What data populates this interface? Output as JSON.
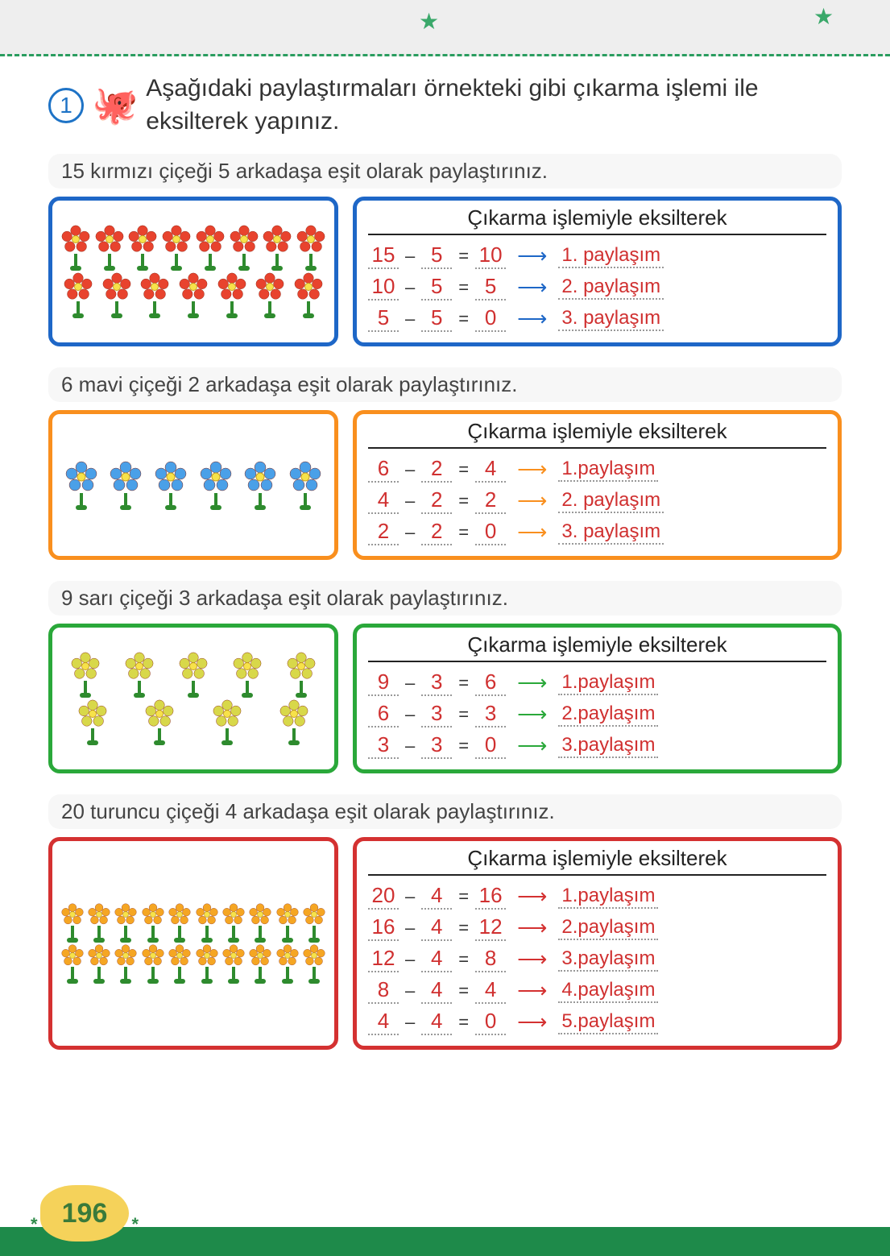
{
  "intro": {
    "number": "1",
    "text": "Aşağıdaki paylaştırmaları örnekteki gibi çıkarma işlemi ile eksilterek yapınız."
  },
  "calc_title": "Çıkarma işlemiyle eksilterek",
  "page_number": "196",
  "colors": {
    "blue": "#1e67c7",
    "orange": "#f98f1e",
    "green": "#2aa83a",
    "red": "#d43131"
  },
  "sections": [
    {
      "task": "15 kırmızı çiçeği 5 arkadaşa eşit olarak paylaştırınız.",
      "border_color": "#1e67c7",
      "arrow_color": "#1e67c7",
      "flower_color": "#e8432e",
      "rows": [
        8,
        7
      ],
      "petal_size": 18,
      "calc": [
        {
          "a": "15",
          "b": "5",
          "r": "10",
          "s": "1. paylaşım"
        },
        {
          "a": "10",
          "b": "5",
          "r": "5",
          "s": "2. paylaşım"
        },
        {
          "a": "5",
          "b": "5",
          "r": "0",
          "s": "3. paylaşım"
        }
      ]
    },
    {
      "task": "6 mavi çiçeği 2 arkadaşa eşit olarak paylaştırınız.",
      "border_color": "#f98f1e",
      "arrow_color": "#f98f1e",
      "flower_color": "#4aa0e8",
      "rows": [
        6
      ],
      "petal_size": 20,
      "calc": [
        {
          "a": "6",
          "b": "2",
          "r": "4",
          "s": "1.paylaşım"
        },
        {
          "a": "4",
          "b": "2",
          "r": "2",
          "s": "2. paylaşım"
        },
        {
          "a": "2",
          "b": "2",
          "r": "0",
          "s": "3. paylaşım"
        }
      ]
    },
    {
      "task": "9 sarı çiçeği 3 arkadaşa eşit olarak paylaştırınız.",
      "border_color": "#2aa83a",
      "arrow_color": "#2aa83a",
      "flower_color": "#d8d84a",
      "rows": [
        5,
        4
      ],
      "petal_size": 18,
      "calc": [
        {
          "a": "9",
          "b": "3",
          "r": "6",
          "s": "1.paylaşım"
        },
        {
          "a": "6",
          "b": "3",
          "r": "3",
          "s": "2.paylaşım"
        },
        {
          "a": "3",
          "b": "3",
          "r": "0",
          "s": "3.paylaşım"
        }
      ]
    },
    {
      "task": "20 turuncu çiçeği 4 arkadaşa eşit olarak paylaştırınız.",
      "border_color": "#d43131",
      "arrow_color": "#d43131",
      "flower_color": "#f5a623",
      "rows": [
        10,
        10
      ],
      "petal_size": 14,
      "calc": [
        {
          "a": "20",
          "b": "4",
          "r": "16",
          "s": "1.paylaşım"
        },
        {
          "a": "16",
          "b": "4",
          "r": "12",
          "s": "2.paylaşım"
        },
        {
          "a": "12",
          "b": "4",
          "r": "8",
          "s": "3.paylaşım"
        },
        {
          "a": "8",
          "b": "4",
          "r": "4",
          "s": "4.paylaşım"
        },
        {
          "a": "4",
          "b": "4",
          "r": "0",
          "s": "5.paylaşım"
        }
      ]
    }
  ]
}
